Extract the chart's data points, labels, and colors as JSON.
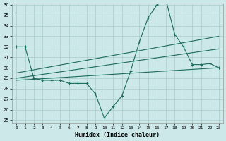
{
  "xlabel": "Humidex (Indice chaleur)",
  "background_color": "#cce8e8",
  "grid_color": "#aacccc",
  "line_color": "#1a6b5a",
  "ylim_min": 25,
  "ylim_max": 36,
  "xlim_min": -0.5,
  "xlim_max": 23.5,
  "yticks": [
    25,
    26,
    27,
    28,
    29,
    30,
    31,
    32,
    33,
    34,
    35,
    36
  ],
  "xticks": [
    0,
    1,
    2,
    3,
    4,
    5,
    6,
    7,
    8,
    9,
    10,
    11,
    12,
    13,
    14,
    15,
    16,
    17,
    18,
    19,
    20,
    21,
    22,
    23
  ],
  "line1_x": [
    0,
    1,
    2,
    3,
    4,
    5,
    6,
    7,
    8,
    9,
    10,
    11,
    12,
    13,
    14,
    15,
    16,
    17,
    18,
    19,
    20,
    21,
    22,
    23
  ],
  "line1_y": [
    32,
    32,
    29,
    28.8,
    28.8,
    28.8,
    28.5,
    28.5,
    28.5,
    27.5,
    25.2,
    26.3,
    27.3,
    29.7,
    32.5,
    34.8,
    36.0,
    36.5,
    33.2,
    32.0,
    30.3,
    30.3,
    30.4,
    30.0
  ],
  "line2_x": [
    0,
    23
  ],
  "line2_y": [
    29.5,
    33.0
  ],
  "line3_x": [
    0,
    23
  ],
  "line3_y": [
    29.0,
    31.8
  ],
  "line4_x": [
    0,
    23
  ],
  "line4_y": [
    28.8,
    30.0
  ]
}
